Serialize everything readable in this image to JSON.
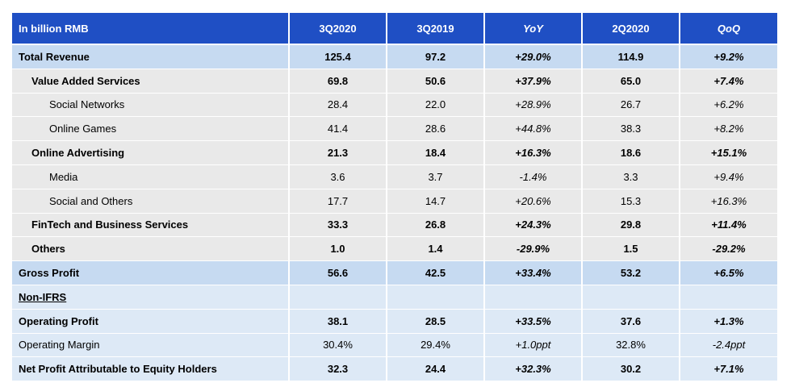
{
  "header": {
    "label": "In billion RMB",
    "col1": "3Q2020",
    "col2": "3Q2019",
    "col3": "YoY",
    "col4": "2Q2020",
    "col5": "QoQ"
  },
  "rows": [
    {
      "label": "Total Revenue",
      "v1": "125.4",
      "v2": "97.2",
      "v3": "+29.0%",
      "v4": "114.9",
      "v5": "+9.2%"
    },
    {
      "label": "Value Added Services",
      "v1": "69.8",
      "v2": "50.6",
      "v3": "+37.9%",
      "v4": "65.0",
      "v5": "+7.4%"
    },
    {
      "label": "Social Networks",
      "v1": "28.4",
      "v2": "22.0",
      "v3": "+28.9%",
      "v4": "26.7",
      "v5": "+6.2%"
    },
    {
      "label": "Online Games",
      "v1": "41.4",
      "v2": "28.6",
      "v3": "+44.8%",
      "v4": "38.3",
      "v5": "+8.2%"
    },
    {
      "label": "Online Advertising",
      "v1": "21.3",
      "v2": "18.4",
      "v3": "+16.3%",
      "v4": "18.6",
      "v5": "+15.1%"
    },
    {
      "label": "Media",
      "v1": "3.6",
      "v2": "3.7",
      "v3": "-1.4%",
      "v4": "3.3",
      "v5": "+9.4%"
    },
    {
      "label": "Social and Others",
      "v1": "17.7",
      "v2": "14.7",
      "v3": "+20.6%",
      "v4": "15.3",
      "v5": "+16.3%"
    },
    {
      "label": "FinTech and Business Services",
      "v1": "33.3",
      "v2": "26.8",
      "v3": "+24.3%",
      "v4": "29.8",
      "v5": "+11.4%"
    },
    {
      "label": "Others",
      "v1": "1.0",
      "v2": "1.4",
      "v3": "-29.9%",
      "v4": "1.5",
      "v5": "-29.2%"
    },
    {
      "label": "Gross Profit",
      "v1": "56.6",
      "v2": "42.5",
      "v3": "+33.4%",
      "v4": "53.2",
      "v5": "+6.5%"
    },
    {
      "label": "Non-IFRS",
      "v1": "",
      "v2": "",
      "v3": "",
      "v4": "",
      "v5": ""
    },
    {
      "label": "Operating Profit",
      "v1": "38.1",
      "v2": "28.5",
      "v3": "+33.5%",
      "v4": "37.6",
      "v5": "+1.3%"
    },
    {
      "label": "Operating Margin",
      "v1": "30.4%",
      "v2": "29.4%",
      "v3": "+1.0ppt",
      "v4": "32.8%",
      "v5": "-2.4ppt"
    },
    {
      "label": "Net Profit Attributable to Equity Holders",
      "v1": "32.3",
      "v2": "24.4",
      "v3": "+32.3%",
      "v4": "30.2",
      "v5": "+7.1%"
    }
  ],
  "colors": {
    "header_bg": "#1f4fc4",
    "highlight_bg": "#c6daf1",
    "row_bg": "#e9e9e9",
    "light_bg": "#dde9f6"
  }
}
